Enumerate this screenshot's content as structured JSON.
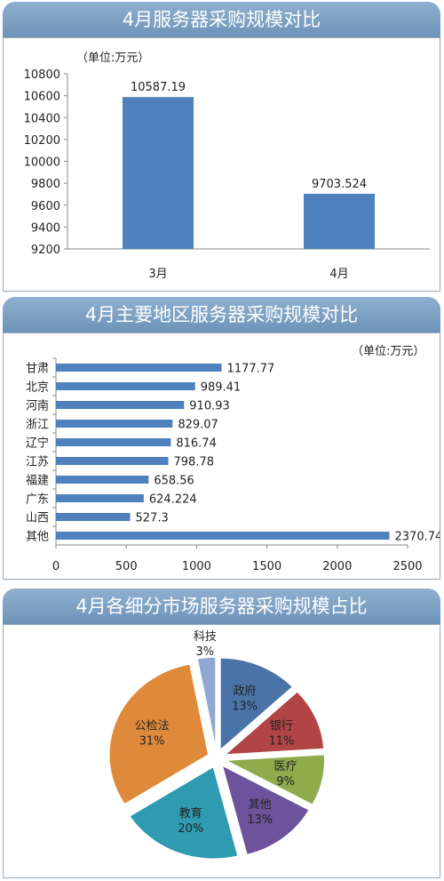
{
  "chart_data": [
    {
      "type": "bar",
      "title": "4月服务器采购规模对比",
      "unit_label": "（单位:万元）",
      "categories": [
        "3月",
        "4月"
      ],
      "values": [
        10587.19,
        9703.524
      ],
      "value_labels": [
        "10587.19",
        "9703.524"
      ],
      "ylim": [
        9200,
        10800
      ],
      "yticks": [
        "9200",
        "9400",
        "9600",
        "9800",
        "10000",
        "10200",
        "10400",
        "10600",
        "10800"
      ],
      "grid": false,
      "color": "#4f81bd"
    },
    {
      "type": "bar",
      "orientation": "horizontal",
      "title": "4月主要地区服务器采购规模对比",
      "unit_label": "（单位:万元）",
      "categories": [
        "甘肃",
        "北京",
        "河南",
        "浙江",
        "辽宁",
        "江苏",
        "福建",
        "广东",
        "山西",
        "其他"
      ],
      "values": [
        1177.77,
        989.41,
        910.93,
        829.07,
        816.74,
        798.78,
        658.56,
        624.224,
        527.3,
        2370.74
      ],
      "value_labels": [
        "1177.77",
        "989.41",
        "910.93",
        "829.07",
        "816.74",
        "798.78",
        "658.56",
        "624.224",
        "527.3",
        "2370.74"
      ],
      "xlim": [
        0,
        2500
      ],
      "xticks": [
        "0",
        "500",
        "1000",
        "1500",
        "2000",
        "2500"
      ],
      "grid": false,
      "color": "#4f81bd"
    },
    {
      "type": "pie",
      "title": "4月各细分市场服务器采购规模占比",
      "exploded": true,
      "slices": [
        {
          "name": "政府",
          "value": 13,
          "label": "13%",
          "color": "#4a74a8"
        },
        {
          "name": "银行",
          "value": 11,
          "label": "11%",
          "color": "#b14546"
        },
        {
          "name": "医疗",
          "value": 9,
          "label": "9%",
          "color": "#8fab4c"
        },
        {
          "name": "其他",
          "value": 13,
          "label": "13%",
          "color": "#6d539c"
        },
        {
          "name": "教育",
          "value": 20,
          "label": "20%",
          "color": "#2f9bb0"
        },
        {
          "name": "公检法",
          "value": 31,
          "label": "31%",
          "color": "#df8a3a"
        },
        {
          "name": "科技",
          "value": 3,
          "label": "3%",
          "color": "#91a9d2"
        }
      ]
    }
  ]
}
